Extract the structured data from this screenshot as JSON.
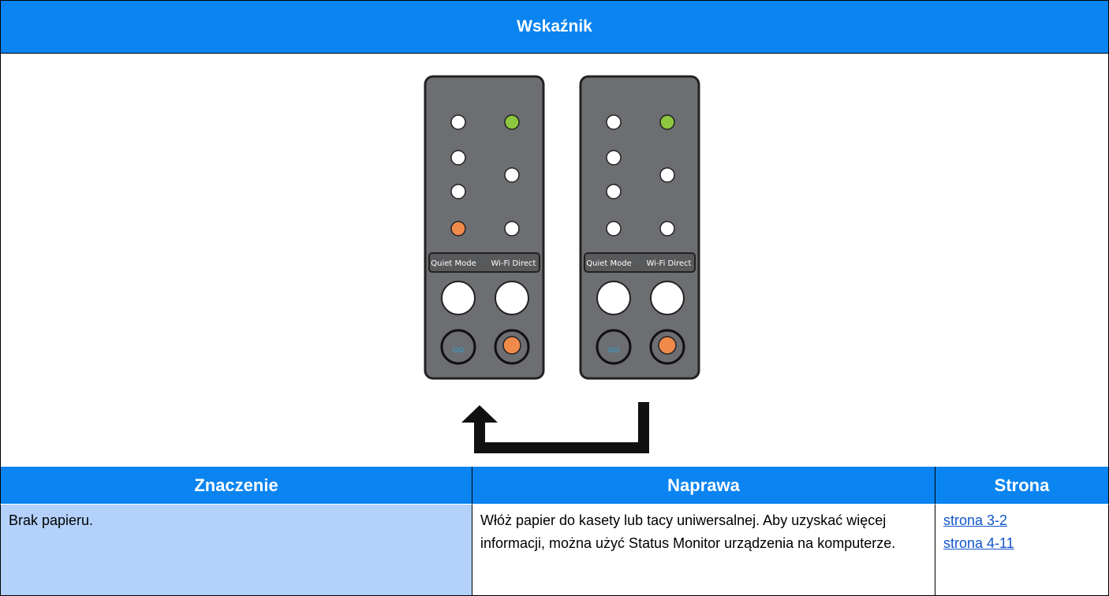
{
  "header": {
    "title": "Wskaźnik"
  },
  "panel": {
    "labels": [
      "Quiet Mode",
      "Wi-Fi Direct"
    ],
    "go": "GO"
  },
  "table": {
    "headers": [
      "Znaczenie",
      "Naprawa",
      "Strona"
    ],
    "rows": [
      [
        "Brak papieru.",
        "Włóż papier do kasety lub tacy uniwersalnej. Aby uzyskać więcej informacji, można użyć Status Monitor urządzenia na komputerze.",
        [
          "strona 3-2",
          "strona 4-11"
        ]
      ]
    ]
  }
}
